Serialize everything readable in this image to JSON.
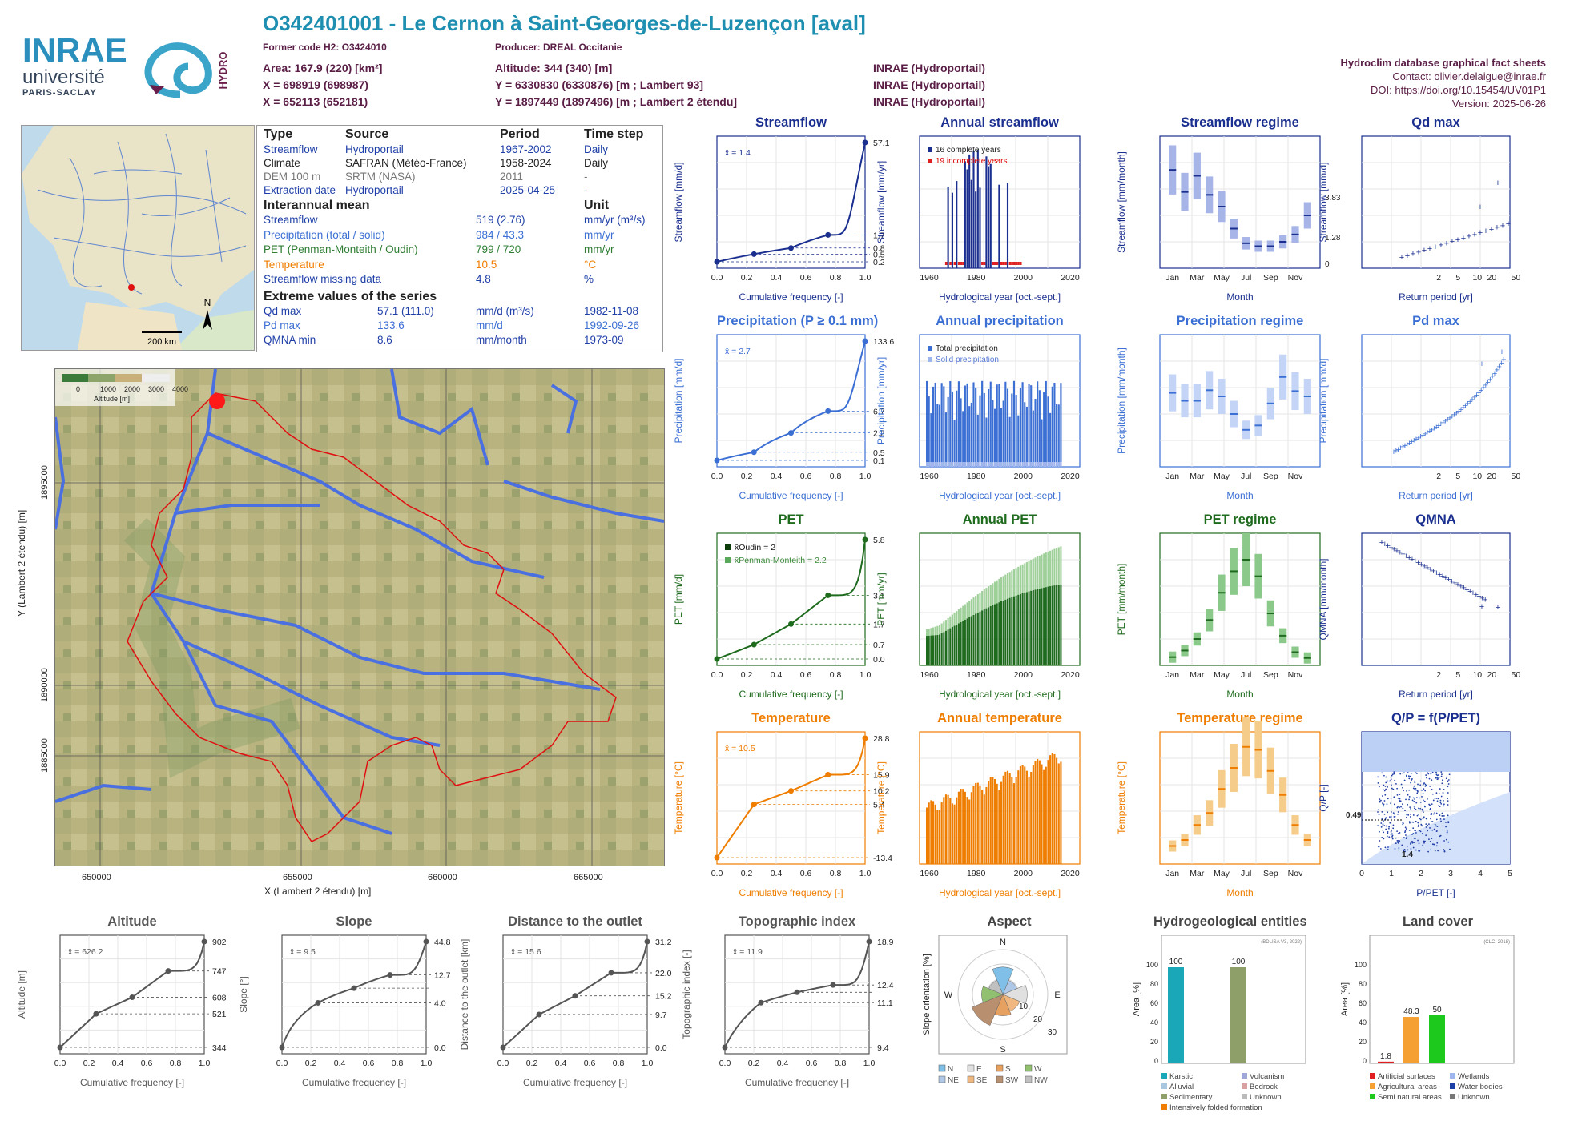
{
  "header": {
    "title": "O342401001 - Le Cernon à Saint-Georges-de-Luzençon [aval]",
    "former_code": "Former code H2: O3424010",
    "producer": "Producer: DREAL Occitanie",
    "area": "Area: 167.9 (220) [km²]",
    "x93": "X = 698919 (698987)",
    "x2e": "X = 652113 (652181)",
    "altitude": "Altitude: 344 (340) [m]",
    "y93": "Y = 6330830 (6330876) [m ; Lambert 93]",
    "y2e": "Y = 1897449 (1897496) [m ; Lambert 2 étendu]",
    "src1": "INRAE (Hydroportail)",
    "src2": "INRAE (Hydroportail)",
    "src3": "INRAE (Hydroportail)",
    "db": "Hydroclim database graphical fact sheets",
    "contact": "Contact: olivier.delaigue@inrae.fr",
    "doi": "DOI: https://doi.org/10.15454/UV01P1",
    "version": "Version: 2025-06-26"
  },
  "logo": {
    "l1": "INRAE",
    "l2": "université",
    "l3": "PARIS-SACLAY",
    "hydro": "HYDRO"
  },
  "locmap": {
    "scale": "200 km",
    "north": "N"
  },
  "info": {
    "h_type": "Type",
    "h_source": "Source",
    "h_period": "Period",
    "h_step": "Time step",
    "rows": [
      {
        "t": "Streamflow",
        "s": "Hydroportail",
        "p": "1967-2002",
        "ts": "Daily",
        "col": "#1f3fa8"
      },
      {
        "t": "Climate",
        "s": "SAFRAN (Météo-France)",
        "p": "1958-2024",
        "ts": "Daily",
        "col": "#222"
      },
      {
        "t": "DEM 100 m",
        "s": "SRTM (NASA)",
        "p": "2011",
        "ts": "-",
        "col": "#777"
      },
      {
        "t": "Extraction date",
        "s": "Hydroportail",
        "p": "2025-04-25",
        "ts": "-",
        "col": "#1f3fa8"
      }
    ],
    "h_mean": "Interannual mean",
    "h_unit": "Unit",
    "mean_rows": [
      {
        "t": "Streamflow",
        "v": "519 (2.76)",
        "u": "mm/yr (m³/s)",
        "col": "#1f3fa8"
      },
      {
        "t": "Precipitation (total / solid)",
        "v": "984 / 43.3",
        "u": "mm/yr",
        "col": "#3b6fd4"
      },
      {
        "t": "PET (Penman-Monteith / Oudin)",
        "v": "799 / 720",
        "u": "mm/yr",
        "col": "#2e7d32"
      },
      {
        "t": "Temperature",
        "v": "10.5",
        "u": "°C",
        "col": "#ef7d00"
      },
      {
        "t": "Streamflow missing data",
        "v": "4.8",
        "u": "%",
        "col": "#1f3fa8"
      }
    ],
    "h_extreme": "Extreme values of the series",
    "ext_rows": [
      {
        "t": "Qd max",
        "v": "57.1 (111.0)",
        "u": "mm/d (m³/s)",
        "d": "1982-11-08",
        "col": "#1f3fa8"
      },
      {
        "t": "Pd max",
        "v": "133.6",
        "u": "mm/d",
        "d": "1992-09-26",
        "col": "#3b6fd4"
      },
      {
        "t": "QMNA min",
        "v": "8.6",
        "u": "mm/month",
        "d": "1973-09",
        "col": "#1f3fa8"
      }
    ]
  },
  "bigmap": {
    "xlabel": "X (Lambert 2 étendu) [m]",
    "ylabel": "Y (Lambert 2 étendu) [m]",
    "xticks": [
      "650000",
      "655000",
      "660000",
      "665000"
    ],
    "yticks": [
      "1895000",
      "1890000",
      "1885000"
    ],
    "legend_title": "Altitude [m]",
    "legend_ticks": [
      "0",
      "1000",
      "2000",
      "3000",
      "4000"
    ]
  },
  "chart_data": [
    {
      "id": "streamflow",
      "type": "line",
      "title": "Streamflow",
      "ylabel": "Streamflow [mm/d]",
      "xlabel": "Cumulative frequency [-]",
      "mean": "x̄ = 1.4",
      "right_ticks": [
        "57.1",
        "1.7",
        "0.8",
        "0.5",
        "0.2"
      ],
      "x": [
        0,
        0.25,
        0.5,
        0.75,
        1
      ],
      "y": [
        0.2,
        0.5,
        0.8,
        1.7,
        57.1
      ]
    },
    {
      "id": "annual_streamflow",
      "type": "bar",
      "title": "Annual streamflow",
      "ylabel": "Streamflow [mm/yr]",
      "xlabel": "Hydrological year [oct.-sept.]",
      "legend": [
        "16 complete years",
        "19 incomplete years"
      ],
      "xticks": [
        "1960",
        "1980",
        "2000",
        "2020"
      ]
    },
    {
      "id": "streamflow_regime",
      "type": "box",
      "title": "Streamflow regime",
      "ylabel": "Streamflow [mm/month]",
      "xlabel": "Month",
      "right_ticks": [
        "3.83",
        "1.28",
        "0"
      ],
      "categories": [
        "Jan",
        "Feb",
        "Mar",
        "Apr",
        "May",
        "Jun",
        "Jul",
        "Aug",
        "Sep",
        "Oct",
        "Nov",
        "Dec"
      ],
      "median": [
        67,
        52,
        63,
        50,
        42,
        27,
        17,
        15,
        15,
        18,
        23,
        36
      ]
    },
    {
      "id": "qd_max",
      "type": "scatter",
      "title": "Qd max",
      "ylabel": "Streamflow [mm/d]",
      "xlabel": "Return period [yr]",
      "xticks": [
        "2",
        "5",
        "10",
        "20",
        "50"
      ]
    },
    {
      "id": "precipitation",
      "type": "line",
      "title": "Precipitation (P ≥ 0.1 mm)",
      "ylabel": "Precipitation [mm/d]",
      "xlabel": "Cumulative frequency [-]",
      "mean": "x̄ = 2.7",
      "right_ticks": [
        "133.6",
        "6.7",
        "2.2",
        "0.5",
        "0.1"
      ],
      "x": [
        0,
        0.25,
        0.5,
        0.75,
        1
      ],
      "y": [
        0.1,
        0.5,
        2.2,
        6.7,
        133.6
      ]
    },
    {
      "id": "annual_precipitation",
      "type": "bar",
      "title": "Annual precipitation",
      "ylabel": "Precipitation [mm/yr]",
      "xlabel": "Hydrological year [oct.-sept.]",
      "legend": [
        "Total precipitation",
        "Solid precipitation"
      ],
      "xticks": [
        "1960",
        "1980",
        "2000",
        "2020"
      ]
    },
    {
      "id": "precipitation_regime",
      "type": "box",
      "title": "Precipitation regime",
      "ylabel": "Precipitation [mm/month]",
      "xlabel": "Month",
      "categories": [
        "Jan",
        "Feb",
        "Mar",
        "Apr",
        "May",
        "Jun",
        "Jul",
        "Aug",
        "Sep",
        "Oct",
        "Nov",
        "Dec"
      ],
      "median": [
        84,
        75,
        75,
        87,
        80,
        60,
        42,
        47,
        72,
        102,
        86,
        80
      ]
    },
    {
      "id": "pd_max",
      "type": "scatter",
      "title": "Pd max",
      "ylabel": "Precipitation [mm/d]",
      "xlabel": "Return period [yr]",
      "xticks": [
        "2",
        "5",
        "10",
        "20",
        "50"
      ]
    },
    {
      "id": "pet",
      "type": "line",
      "title": "PET",
      "ylabel": "PET [mm/d]",
      "xlabel": "Cumulative frequency [-]",
      "legend": [
        "x̄Oudin = 2",
        "x̄Penman-Monteith = 2.2"
      ],
      "right_ticks": [
        "5.8",
        "3.1",
        "1.7",
        "0.7",
        "0.0"
      ],
      "x": [
        0,
        0.25,
        0.5,
        0.75,
        1
      ],
      "y": [
        0.0,
        0.7,
        1.7,
        3.1,
        5.8
      ]
    },
    {
      "id": "annual_pet",
      "type": "bar",
      "title": "Annual PET",
      "ylabel": "PET [mm/yr]",
      "xlabel": "Hydrological year [oct.-sept.]",
      "xticks": [
        "1960",
        "1980",
        "2000",
        "2020"
      ]
    },
    {
      "id": "pet_regime",
      "type": "box",
      "title": "PET regime",
      "ylabel": "PET [mm/month]",
      "xlabel": "Month",
      "categories": [
        "Jan",
        "Feb",
        "Mar",
        "Apr",
        "May",
        "Jun",
        "Jul",
        "Aug",
        "Sep",
        "Oct",
        "Nov",
        "Dec"
      ],
      "median": [
        10,
        18,
        32,
        55,
        88,
        114,
        128,
        108,
        63,
        36,
        16,
        9
      ]
    },
    {
      "id": "qmna",
      "type": "scatter",
      "title": "QMNA",
      "ylabel": "QMNA [mm/month]",
      "xlabel": "Return period [yr]",
      "xticks": [
        "2",
        "5",
        "10",
        "20",
        "50"
      ]
    },
    {
      "id": "temperature",
      "type": "line",
      "title": "Temperature",
      "ylabel": "Temperature [°C]",
      "xlabel": "Cumulative frequency [-]",
      "mean": "x̄ = 10.5",
      "right_ticks": [
        "28.8",
        "15.9",
        "10.2",
        "5.4",
        "-13.4"
      ],
      "x": [
        0,
        0.25,
        0.5,
        0.75,
        1
      ],
      "y": [
        -13.4,
        5.4,
        10.2,
        15.9,
        28.8
      ]
    },
    {
      "id": "annual_temperature",
      "type": "bar",
      "title": "Annual temperature",
      "ylabel": "Temperature [°C]",
      "xlabel": "Hydrological year [oct.-sept.]",
      "xticks": [
        "1960",
        "1980",
        "2000",
        "2020"
      ]
    },
    {
      "id": "temperature_regime",
      "type": "box",
      "title": "Temperature regime",
      "ylabel": "Temperature [°C]",
      "xlabel": "Month",
      "categories": [
        "Jan",
        "Feb",
        "Mar",
        "Apr",
        "May",
        "Jun",
        "Jul",
        "Aug",
        "Sep",
        "Oct",
        "Nov",
        "Dec"
      ],
      "median": [
        3,
        4,
        6.5,
        8.5,
        12.5,
        16,
        19.5,
        19,
        15.5,
        11.5,
        6.5,
        4
      ]
    },
    {
      "id": "qp",
      "type": "scatter",
      "title": "Q/P = f(P/PET)",
      "ylabel": "Q/P [-]",
      "xlabel": "P/PET [-]",
      "annotations": [
        "0.49",
        "1.4"
      ]
    },
    {
      "id": "altitude",
      "type": "line",
      "title": "Altitude",
      "ylabel": "Altitude [m]",
      "xlabel": "Cumulative frequency [-]",
      "mean": "x̄ = 626.2",
      "right_ticks": [
        "902",
        "747",
        "608",
        "521",
        "344"
      ],
      "x": [
        0,
        0.25,
        0.5,
        0.75,
        1
      ],
      "y": [
        344,
        521,
        608,
        747,
        902
      ]
    },
    {
      "id": "slope",
      "type": "line",
      "title": "Slope",
      "ylabel": "Slope [°]",
      "xlabel": "Cumulative frequency [-]",
      "mean": "x̄ = 9.5",
      "right_ticks": [
        "44.8",
        "12.7",
        "4.0",
        "0.0"
      ],
      "x": [
        0,
        0.25,
        0.5,
        0.75,
        1
      ],
      "y": [
        0.0,
        4.0,
        7.5,
        12.7,
        44.8
      ]
    },
    {
      "id": "distance",
      "type": "line",
      "title": "Distance to the outlet",
      "ylabel": "Distance to the outlet [km]",
      "xlabel": "Cumulative frequency [-]",
      "mean": "x̄ = 15.6",
      "right_ticks": [
        "31.2",
        "22.0",
        "15.2",
        "9.7",
        "0.0"
      ],
      "x": [
        0,
        0.25,
        0.5,
        0.75,
        1
      ],
      "y": [
        0.0,
        9.7,
        15.2,
        22.0,
        31.2
      ]
    },
    {
      "id": "topo",
      "type": "line",
      "title": "Topographic index",
      "ylabel": "Topographic index [-]",
      "xlabel": "Cumulative frequency [-]",
      "mean": "x̄ = 11.9",
      "right_ticks": [
        "18.9",
        "12.4",
        "11.1",
        "9.4"
      ],
      "x": [
        0,
        0.25,
        0.5,
        0.75,
        1
      ],
      "y": [
        9.4,
        11.1,
        11.8,
        12.4,
        18.9
      ]
    },
    {
      "id": "aspect",
      "type": "pie",
      "title": "Aspect",
      "ylabel": "Slope orientation [%]",
      "dirs": [
        "N",
        "E",
        "S",
        "W"
      ],
      "rings": [
        "10",
        "20",
        "30"
      ],
      "legend": [
        "N",
        "E",
        "S",
        "W",
        "NE",
        "SE",
        "SW",
        "NW"
      ]
    },
    {
      "id": "hydrogeo",
      "type": "bar",
      "title": "Hydrogeological entities",
      "ylabel": "Area [%]",
      "source": "(BDLISA V3, 2022)",
      "values": [
        100,
        100
      ],
      "labels": [
        "100",
        "100"
      ],
      "legend": [
        "Karstic",
        "Volcanism",
        "Alluvial",
        "Bedrock",
        "Sedimentary",
        "Unknown",
        "Intensively folded formation"
      ]
    },
    {
      "id": "landcover",
      "type": "bar",
      "title": "Land cover",
      "ylabel": "Area [%]",
      "source": "(CLC, 2018)",
      "values": [
        1.8,
        48.3,
        50
      ],
      "labels": [
        "1.8",
        "48.3",
        "50"
      ],
      "legend": [
        "Artificial surfaces",
        "Wetlands",
        "Agricultural areas",
        "Water bodies",
        "Semi natural areas",
        "Unknown"
      ]
    }
  ]
}
